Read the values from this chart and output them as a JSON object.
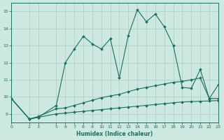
{
  "title": "",
  "xlabel": "Humidex (Indice chaleur)",
  "bg_color": "#cce8e0",
  "line_color": "#1a7060",
  "grid_color": "#aaccc4",
  "ylim": [
    8.5,
    15.5
  ],
  "xlim": [
    0,
    23
  ],
  "xticks": [
    0,
    2,
    3,
    5,
    6,
    7,
    8,
    9,
    10,
    11,
    12,
    13,
    14,
    15,
    16,
    17,
    18,
    19,
    20,
    21,
    22,
    23
  ],
  "yticks": [
    9,
    10,
    11,
    12,
    13,
    14,
    15
  ],
  "line1_x": [
    0,
    2,
    3,
    5,
    6,
    7,
    8,
    9,
    10,
    11,
    12,
    13,
    14,
    15,
    16,
    17,
    18,
    19,
    20,
    21,
    22,
    23
  ],
  "line1_y": [
    9.9,
    8.7,
    8.8,
    9.5,
    12.0,
    12.8,
    13.55,
    13.1,
    12.8,
    13.4,
    11.1,
    13.6,
    15.1,
    14.4,
    14.85,
    14.1,
    13.0,
    10.55,
    10.5,
    11.6,
    9.9,
    10.7
  ],
  "line2_x": [
    0,
    2,
    3,
    5,
    6,
    7,
    8,
    9,
    10,
    11,
    12,
    13,
    14,
    15,
    16,
    17,
    18,
    19,
    20,
    21,
    22,
    23
  ],
  "line2_y": [
    9.9,
    8.7,
    8.85,
    9.3,
    9.35,
    9.5,
    9.65,
    9.8,
    9.95,
    10.05,
    10.15,
    10.3,
    10.45,
    10.55,
    10.65,
    10.75,
    10.85,
    10.9,
    11.0,
    11.1,
    9.9,
    9.9
  ],
  "line3_x": [
    0,
    2,
    3,
    5,
    6,
    7,
    8,
    9,
    10,
    11,
    12,
    13,
    14,
    15,
    16,
    17,
    18,
    19,
    20,
    21,
    22,
    23
  ],
  "line3_y": [
    9.9,
    8.7,
    8.8,
    9.0,
    9.05,
    9.1,
    9.15,
    9.2,
    9.25,
    9.3,
    9.35,
    9.4,
    9.45,
    9.5,
    9.55,
    9.6,
    9.65,
    9.7,
    9.72,
    9.74,
    9.76,
    9.78
  ]
}
